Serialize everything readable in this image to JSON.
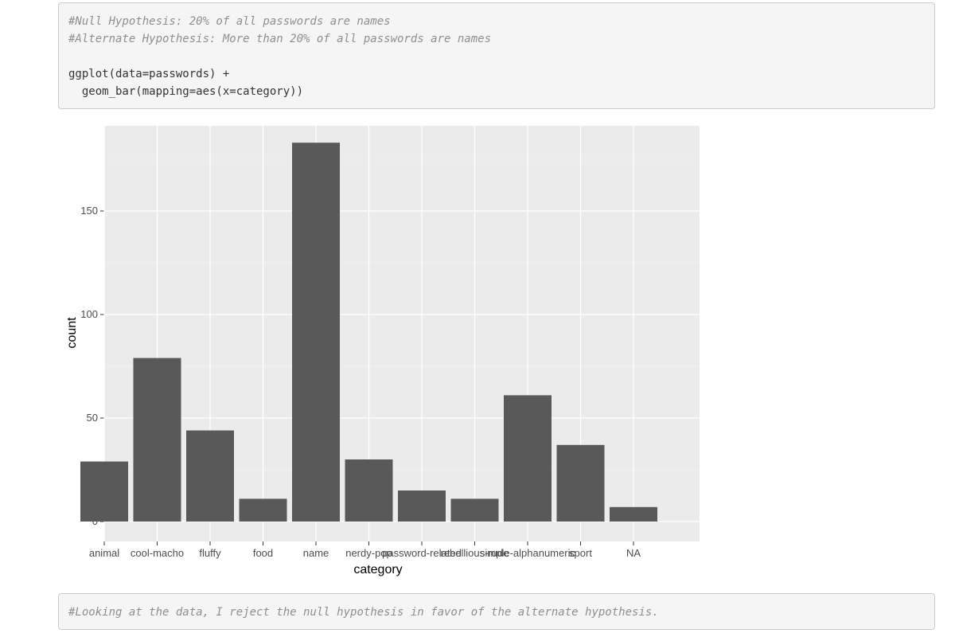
{
  "code_block_1": {
    "lines": [
      "#Null Hypothesis: 20% of all passwords are names",
      "#Alternate Hypothesis: More than 20% of all passwords are names",
      "",
      "ggplot(data=passwords) +",
      "  geom_bar(mapping=aes(x=category))"
    ]
  },
  "code_block_2": {
    "lines": [
      "#Looking at the data, I reject the null hypothesis in favor of the alternate hypothesis."
    ]
  },
  "colors": {
    "panel_bg": "#ebebeb",
    "bar_fill": "#595959",
    "grid_major": "#ffffff",
    "axis_text": "#4d4d4d",
    "comment": "#8e908c"
  },
  "chart_data": {
    "type": "bar",
    "categories": [
      "animal",
      "cool-macho",
      "fluffy",
      "food",
      "name",
      "nerdy-pop",
      "password-related",
      "rebellious-rude",
      "simple-alphanumeric",
      "sport",
      "NA"
    ],
    "values": [
      29,
      79,
      44,
      11,
      183,
      30,
      15,
      11,
      61,
      37,
      7
    ],
    "xlabel": "category",
    "ylabel": "count",
    "yticks": [
      0,
      50,
      100,
      150
    ],
    "ylim": [
      0,
      192
    ],
    "grid": true,
    "theme": "ggplot2 grey"
  }
}
